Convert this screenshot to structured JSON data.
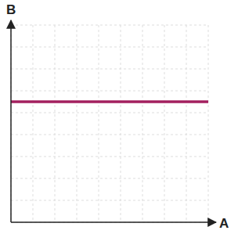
{
  "chart_data": {
    "type": "line",
    "x_label": "A",
    "y_label": "B",
    "x": [
      0,
      9
    ],
    "values": [
      5.5,
      5.5
    ],
    "color": "#a3205f",
    "xlim": [
      0,
      9
    ],
    "ylim": [
      0,
      9
    ],
    "xticks": [
      0,
      1,
      2,
      3,
      4,
      5,
      6,
      7,
      8,
      9
    ],
    "yticks": [
      0,
      1,
      2,
      3,
      4,
      5,
      6,
      7,
      8,
      9
    ],
    "grid": true,
    "tick_labels": false
  }
}
